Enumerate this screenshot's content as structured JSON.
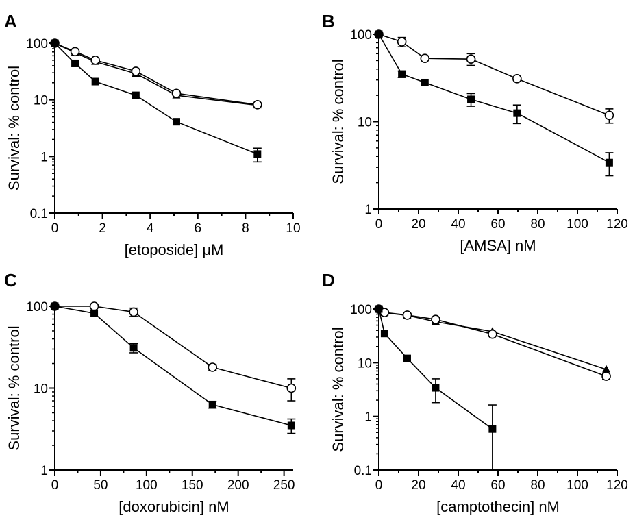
{
  "chart_data": [
    {
      "panel": "A",
      "type": "line",
      "y_log": true,
      "xlabel": "[etoposide] μM",
      "ylabel": "Survival: % control",
      "xlim": [
        0,
        10
      ],
      "ylim": [
        0.1,
        100
      ],
      "xticks": [
        0,
        2,
        4,
        6,
        8,
        10
      ],
      "yticks": [
        0.1,
        1,
        10,
        100
      ],
      "xtick_labels": [
        "0",
        "2",
        "4",
        "6",
        "8",
        "10"
      ],
      "ytick_labels": [
        "0.1",
        "1",
        "10",
        "100"
      ],
      "series": [
        {
          "marker": "triangle",
          "x": [
            0,
            0.85,
            1.7,
            3.4,
            5.1,
            8.5
          ],
          "y": [
            100,
            68,
            47,
            29,
            12,
            8
          ],
          "err": [
            0,
            0,
            0,
            0,
            0,
            0
          ]
        },
        {
          "marker": "circle",
          "x": [
            0,
            0.85,
            1.7,
            3.4,
            5.1,
            8.5
          ],
          "y": [
            100,
            71,
            50,
            32,
            13,
            8.2
          ],
          "err": [
            0,
            0,
            0,
            0,
            0,
            0
          ]
        },
        {
          "marker": "square",
          "x": [
            0,
            0.85,
            1.7,
            3.4,
            5.1,
            8.5
          ],
          "y": [
            100,
            44,
            21,
            12,
            4.1,
            1.1
          ],
          "err": [
            0,
            0,
            0,
            0,
            0,
            0.3
          ]
        }
      ]
    },
    {
      "panel": "B",
      "type": "line",
      "y_log": true,
      "xlabel": "[AMSA] nM",
      "ylabel": "Survival: % control",
      "xlim": [
        0,
        120
      ],
      "ylim": [
        1,
        100
      ],
      "xticks": [
        0,
        20,
        40,
        60,
        80,
        100,
        120
      ],
      "yticks": [
        1,
        10,
        100
      ],
      "xtick_labels": [
        "0",
        "20",
        "40",
        "60",
        "80",
        "100",
        "120"
      ],
      "ytick_labels": [
        "1",
        "10",
        "100"
      ],
      "series": [
        {
          "marker": "circle",
          "x": [
            0,
            11.6,
            23.2,
            46.4,
            69.6,
            116
          ],
          "y": [
            100,
            82,
            53,
            52,
            31,
            11.8
          ],
          "err": [
            0,
            10,
            0,
            8,
            0,
            2.2
          ]
        },
        {
          "marker": "square",
          "x": [
            0,
            11.6,
            23.2,
            46.4,
            69.6,
            116
          ],
          "y": [
            100,
            35,
            28,
            18,
            12.5,
            3.4
          ],
          "err": [
            0,
            3,
            0,
            3,
            3,
            1
          ]
        }
      ]
    },
    {
      "panel": "C",
      "type": "line",
      "y_log": true,
      "xlabel": "[doxorubicin] nM",
      "ylabel": "Survival: % control",
      "xlim": [
        0,
        260
      ],
      "ylim": [
        1,
        100
      ],
      "xticks": [
        0,
        50,
        100,
        150,
        200,
        250
      ],
      "yticks": [
        1,
        10,
        100
      ],
      "xtick_labels": [
        "0",
        "50",
        "100",
        "150",
        "200",
        "250"
      ],
      "ytick_labels": [
        "1",
        "10",
        "100"
      ],
      "series": [
        {
          "marker": "circle",
          "x": [
            0,
            43,
            86,
            172,
            258
          ],
          "y": [
            100,
            100,
            85,
            18,
            10
          ],
          "err": [
            0,
            0,
            10,
            1.5,
            3
          ]
        },
        {
          "marker": "square",
          "x": [
            0,
            43,
            86,
            172,
            258
          ],
          "y": [
            100,
            82,
            31,
            6.3,
            3.5
          ],
          "err": [
            0,
            0,
            4,
            0.6,
            0.7
          ]
        }
      ]
    },
    {
      "panel": "D",
      "type": "line",
      "y_log": true,
      "xlabel": "[camptothecin] nM",
      "ylabel": "Survival: % control",
      "xlim": [
        0,
        120
      ],
      "ylim": [
        0.1,
        100
      ],
      "xticks": [
        0,
        20,
        40,
        60,
        80,
        100,
        120
      ],
      "yticks": [
        0.1,
        1,
        10,
        100
      ],
      "xtick_labels": [
        "0",
        "20",
        "40",
        "60",
        "80",
        "100",
        "120"
      ],
      "ytick_labels": [
        "0.1",
        "1",
        "10",
        "100"
      ],
      "series": [
        {
          "marker": "triangle",
          "x": [
            0,
            2.9,
            14.3,
            28.6,
            57.2,
            114.5
          ],
          "y": [
            100,
            85,
            76,
            58,
            38,
            7.5
          ],
          "err": [
            0,
            0,
            0,
            0,
            0,
            0
          ]
        },
        {
          "marker": "circle",
          "x": [
            0,
            2.9,
            14.3,
            28.6,
            57.2,
            114.5
          ],
          "y": [
            100,
            86,
            77,
            64,
            34,
            5.6
          ],
          "err": [
            0,
            0,
            0,
            0,
            0,
            0.7
          ]
        },
        {
          "marker": "square",
          "x": [
            0,
            2.9,
            14.3,
            28.6,
            57.2
          ],
          "y": [
            100,
            35,
            12,
            3.4,
            0.58
          ],
          "err": [
            0,
            0,
            0,
            1.6,
            1.05
          ]
        }
      ]
    }
  ]
}
